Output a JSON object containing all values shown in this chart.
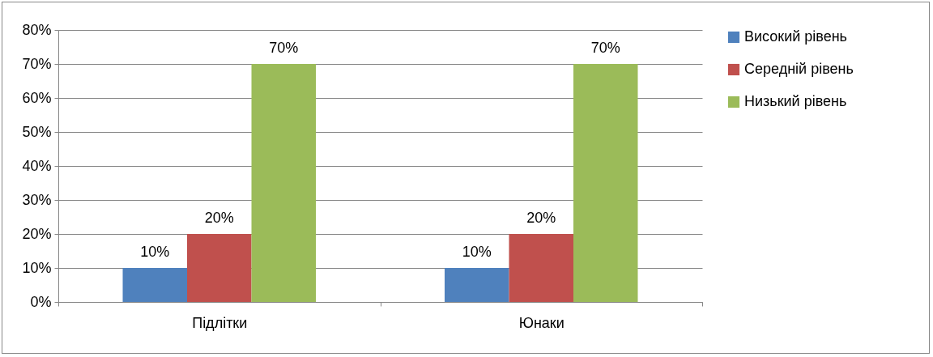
{
  "chart_data": {
    "type": "bar",
    "categories": [
      "Підлітки",
      "Юнаки"
    ],
    "series": [
      {
        "name": "Високий рівень",
        "color": "#4f81bd",
        "values": [
          10,
          10
        ],
        "value_labels": [
          "10%",
          "10%"
        ]
      },
      {
        "name": "Середній рівень",
        "color": "#c0504d",
        "values": [
          20,
          20
        ],
        "value_labels": [
          "20%",
          "20%"
        ]
      },
      {
        "name": "Низький рівень",
        "color": "#9bbb59",
        "values": [
          70,
          70
        ],
        "value_labels": [
          "70%",
          "70%"
        ]
      }
    ],
    "ylim": [
      0,
      80
    ],
    "yticks": [
      {
        "value": 0,
        "label": "0%"
      },
      {
        "value": 10,
        "label": "10%"
      },
      {
        "value": 20,
        "label": "20%"
      },
      {
        "value": 30,
        "label": "30%"
      },
      {
        "value": 40,
        "label": "40%"
      },
      {
        "value": 50,
        "label": "50%"
      },
      {
        "value": 60,
        "label": "60%"
      },
      {
        "value": 70,
        "label": "70%"
      },
      {
        "value": 80,
        "label": "80%"
      }
    ],
    "grid": "y",
    "legend": "right"
  }
}
